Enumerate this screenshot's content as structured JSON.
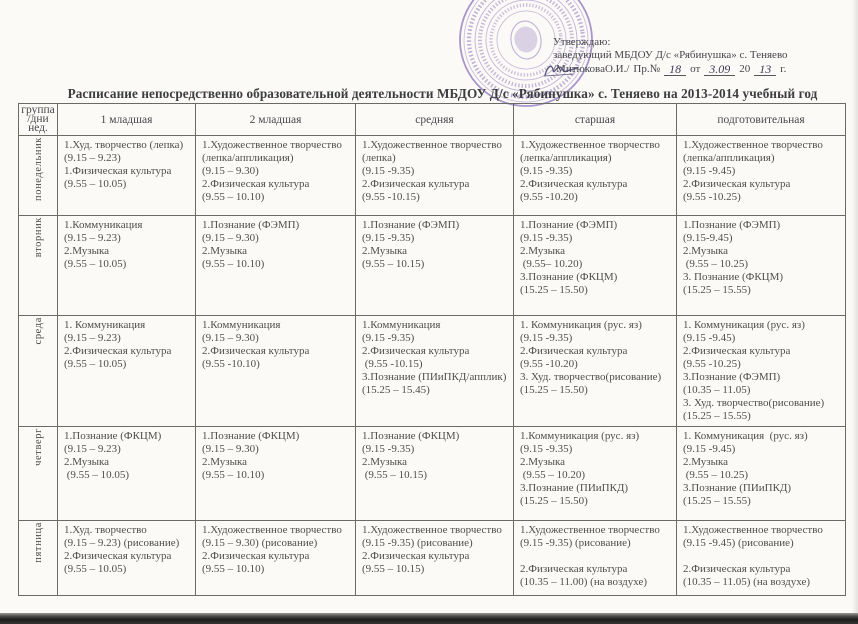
{
  "colors": {
    "stamp": "#8d74bb",
    "ink": "#4e4f4b",
    "table_border": "#6b6b65",
    "handwriting_ink": "#3f3a58"
  },
  "page": {
    "title": "Расписание непосредственно образовательной деятельности МБДОУ Д/с «Рябинушка» с. Теняево на 2013-2014 учебный год",
    "stamp_icon": "round-purple-seal",
    "signature_icon": "handwritten-signature",
    "approval": {
      "line1": "Утверждаю:",
      "line2": "заведующий МБДОУ Д/с «Рябинушка» с. Теняево",
      "name": "/МитюковаО.И./",
      "pr_label": "Пр.№",
      "pr_number": "18",
      "from_label": "от",
      "date": "3.09",
      "year_prefix": "20",
      "year": "13",
      "year_suffix": "г."
    }
  },
  "table": {
    "corner_line1": "группа",
    "corner_line2": "/дни нед.",
    "columns": [
      "1 младшая",
      "2 младшая",
      "средняя",
      "старшая",
      "подготовительная"
    ],
    "rows": [
      {
        "day": "понедельник",
        "cells": [
          [
            "1.Худ. творчество (лепка)",
            "(9.15 – 9.23)",
            "1.Физическая культура",
            "(9.55 – 10.05)"
          ],
          [
            "1.Художественное творчество",
            "(лепка/аппликация)",
            "(9.15 – 9.30)",
            "2.Физическая культура",
            "(9.55 – 10.10)"
          ],
          [
            "1.Художественное творчество",
            "(лепка)",
            "(9.15 -9.35)",
            "2.Физическая культура",
            "(9.55 -10.15)"
          ],
          [
            "1.Художественное творчество",
            "(лепка/аппликация)",
            "(9.15 -9.35)",
            "2.Физическая культура",
            "(9.55 -10.20)"
          ],
          [
            "1.Художественное творчество",
            "(лепка/аппликация)",
            "(9.15 -9.45)",
            "2.Физическая культура",
            "(9.55 -10.25)"
          ]
        ]
      },
      {
        "day": "вторник",
        "cells": [
          [
            "1.Коммуникация",
            "(9.15 – 9.23)",
            "2.Музыка",
            "(9.55 – 10.05)"
          ],
          [
            "1.Познание (ФЭМП)",
            "(9.15 – 9.30)",
            "2.Музыка",
            "(9.55 – 10.10)"
          ],
          [
            "1.Познание (ФЭМП)",
            "(9.15 -9.35)",
            "2.Музыка",
            "(9.55 – 10.15)"
          ],
          [
            "1.Познание (ФЭМП)",
            "(9.15 -9.35)",
            "2.Музыка",
            " (9.55– 10.20)",
            "3.Познание (ФКЦМ)",
            "(15.25 – 15.50)"
          ],
          [
            "1.Познание (ФЭМП)",
            "(9.15-9.45)",
            "2.Музыка",
            " (9.55 – 10.25)",
            "3. Познание (ФКЦМ)",
            "(15.25 – 15.55)"
          ]
        ]
      },
      {
        "day": "среда",
        "cells": [
          [
            "1. Коммуникация",
            "(9.15 – 9.23)",
            "2.Физическая культура",
            "(9.55 – 10.05)"
          ],
          [
            "1.Коммуникация",
            "(9.15 – 9.30)",
            "2.Физическая культура",
            "(9.55 -10.10)"
          ],
          [
            "1.Коммуникация",
            "(9.15 -9.35)",
            "2.Физическая культура",
            " (9.55 -10.15)",
            "3.Познание (ПИиПКД/апплик)",
            "(15.25 – 15.45)"
          ],
          [
            "1. Коммуникация (рус. яз)",
            "(9.15 -9.35)",
            "2.Физическая культура",
            "(9.55 -10.20)",
            "3. Худ. творчество(рисование)",
            "(15.25 – 15.50)"
          ],
          [
            "1. Коммуникация (рус. яз)",
            "(9.15 -9.45)",
            "2.Физическая культура",
            "(9.55 -10.25)",
            "3.Познание (ФЭМП)",
            "(10.35 – 11.05)",
            "3. Худ. творчество(рисование)",
            "(15.25 – 15.55)"
          ]
        ]
      },
      {
        "day": "четверг",
        "cells": [
          [
            "1.Познание (ФКЦМ)",
            "(9.15 – 9.23)",
            "2.Музыка",
            " (9.55 – 10.05)"
          ],
          [
            "1.Познание (ФКЦМ)",
            "(9.15 – 9.30)",
            "2.Музыка",
            "(9.55 – 10.10)"
          ],
          [
            "1.Познание (ФКЦМ)",
            "(9.15 -9.35)",
            "2.Музыка",
            " (9.55 – 10.15)"
          ],
          [
            "1.Коммуникация (рус. яз)",
            "(9.15 -9.35)",
            "2.Музыка",
            " (9.55 – 10.20)",
            "3.Познание (ПИиПКД)",
            "(15.25 – 15.50)"
          ],
          [
            "1. Коммуникация  (рус. яз)",
            "(9.15 -9.45)",
            "2.Музыка",
            " (9.55 – 10.25)",
            "3.Познание (ПИиПКД)",
            "(15.25 – 15.55)"
          ]
        ]
      },
      {
        "day": "пятница",
        "cells": [
          [
            "1.Худ. творчество",
            "(9.15 – 9.23) (рисование)",
            "2.Физическая культура",
            "(9.55 – 10.05)"
          ],
          [
            "1.Художественное творчество",
            "(9.15 – 9.30) (рисование)",
            "2.Физическая культура",
            "(9.55 – 10.10)"
          ],
          [
            "1.Художественное творчество",
            "(9.15 -9.35) (рисование)",
            "2.Физическая культура",
            "(9.55 – 10.15)"
          ],
          [
            "1.Художественное творчество",
            "(9.15 -9.35) (рисование)",
            "",
            "2.Физическая культура",
            "(10.35 – 11.00) (на воздухе)"
          ],
          [
            "1.Художественное творчество",
            "(9.15 -9.45) (рисование)",
            "",
            "2.Физическая культура",
            "(10.35 – 11.05) (на воздухе)"
          ]
        ]
      }
    ]
  }
}
